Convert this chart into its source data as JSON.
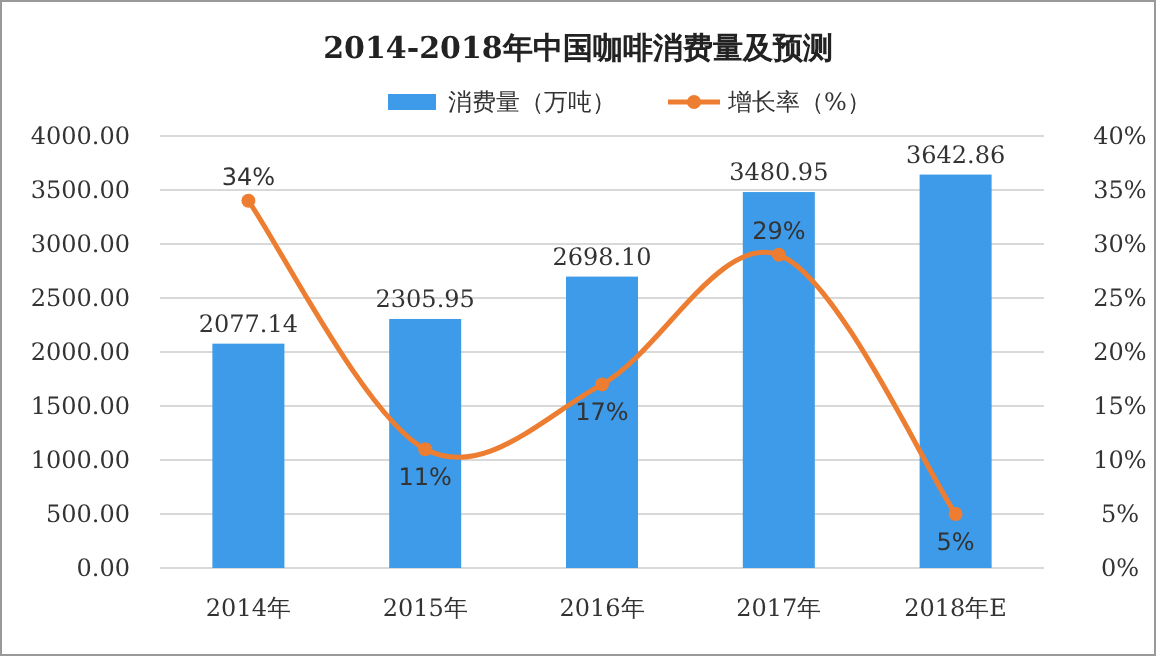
{
  "chart_data": {
    "type": "bar",
    "title": "2014-2018年中国咖啡消费量及预测",
    "categories": [
      "2014年",
      "2015年",
      "2016年",
      "2017年",
      "2018年E"
    ],
    "series": [
      {
        "name": "消费量（万吨）",
        "color": "#3d9be9",
        "values": [
          2077.14,
          2305.95,
          2698.1,
          3480.95,
          3642.86
        ],
        "value_labels": [
          "2077.14",
          "2305.95",
          "2698.10",
          "3480.95",
          "3642.86"
        ]
      },
      {
        "name": "增长率（%）",
        "type": "line",
        "axis": "y2",
        "color": "#ed7d31",
        "marker": "circle",
        "values": [
          34,
          11,
          17,
          29,
          5
        ],
        "value_labels": [
          "34%",
          "11%",
          "17%",
          "29%",
          "5%"
        ]
      }
    ],
    "ylim": [
      0,
      4000
    ],
    "yticks": [
      {
        "value": 0,
        "label": "0.00"
      },
      {
        "value": 500,
        "label": "500.00"
      },
      {
        "value": 1000,
        "label": "1000.00"
      },
      {
        "value": 1500,
        "label": "1500.00"
      },
      {
        "value": 2000,
        "label": "2000.00"
      },
      {
        "value": 2500,
        "label": "2500.00"
      },
      {
        "value": 3000,
        "label": "3000.00"
      },
      {
        "value": 3500,
        "label": "3500.00"
      },
      {
        "value": 4000,
        "label": "4000.00"
      }
    ],
    "y2lim": [
      0,
      40
    ],
    "y2ticks": [
      {
        "value": 0,
        "label": "0%"
      },
      {
        "value": 5,
        "label": "5%"
      },
      {
        "value": 10,
        "label": "10%"
      },
      {
        "value": 15,
        "label": "15%"
      },
      {
        "value": 20,
        "label": "20%"
      },
      {
        "value": 25,
        "label": "25%"
      },
      {
        "value": 30,
        "label": "30%"
      },
      {
        "value": 35,
        "label": "35%"
      },
      {
        "value": 40,
        "label": "40%"
      }
    ],
    "grid": "y",
    "legend": "top"
  }
}
